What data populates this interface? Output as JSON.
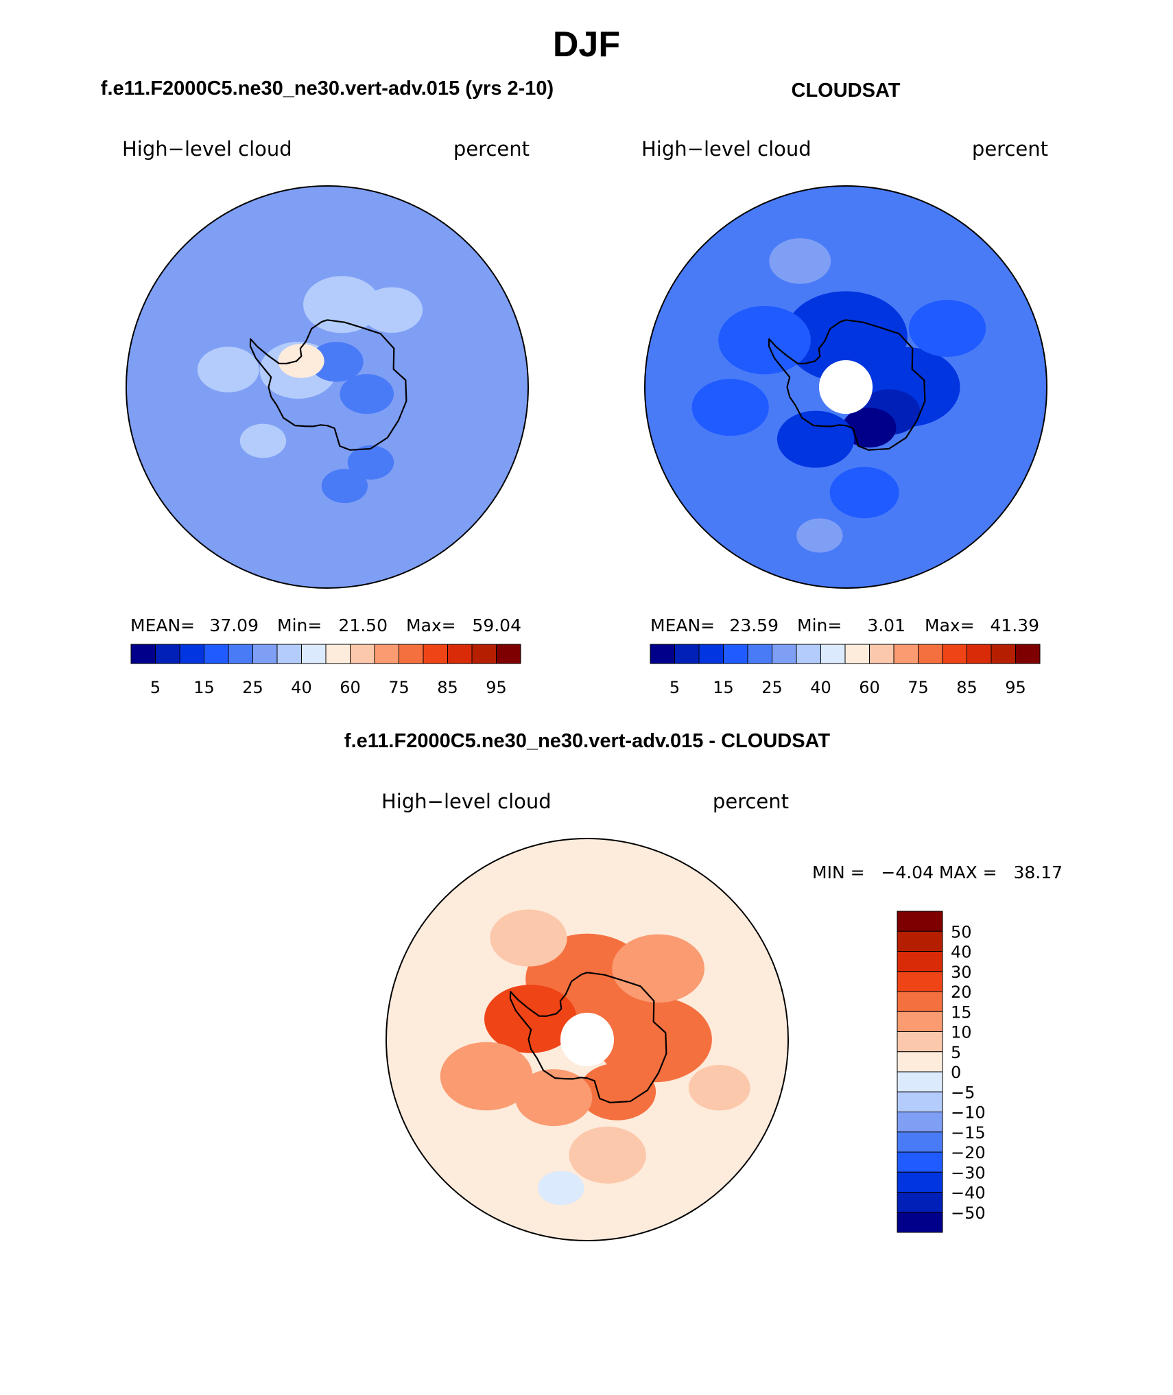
{
  "title": "DJF",
  "panels": [
    {
      "id": "model",
      "header": "f.e11.F2000C5.ne30_ne30.vert-adv.015 (yrs 2-10)",
      "variable": "High−level cloud",
      "units": "percent",
      "stats": {
        "mean_label": "MEAN=",
        "mean": "37.09",
        "min_label": "Min=",
        "min": "21.50",
        "max_label": "Max=",
        "max": "59.04"
      },
      "fields": {
        "background": 5,
        "patches": [
          {
            "lon": -60,
            "lat": -80,
            "r": 10,
            "level": 6
          },
          {
            "lon": 20,
            "lat": -82,
            "r": 7,
            "level": 4
          },
          {
            "lon": 100,
            "lat": -78,
            "r": 7,
            "level": 4
          },
          {
            "lon": -80,
            "lat": -60,
            "r": 8,
            "level": 6
          },
          {
            "lon": 10,
            "lat": -65,
            "r": 10,
            "level": 6
          },
          {
            "lon": 40,
            "lat": -60,
            "r": 8,
            "level": 6
          },
          {
            "lon": -45,
            "lat": -79,
            "r": 6,
            "level": 8
          },
          {
            "lon": 150,
            "lat": -64,
            "r": 6,
            "level": 4
          },
          {
            "lon": 170,
            "lat": -60,
            "r": 6,
            "level": 4
          },
          {
            "lon": -130,
            "lat": -65,
            "r": 6,
            "level": 6
          }
        ]
      }
    },
    {
      "id": "obs",
      "header": "CLOUDSAT",
      "variable": "High−level cloud",
      "units": "percent",
      "stats": {
        "mean_label": "MEAN=",
        "mean": "23.59",
        "min_label": "Min=",
        "min": "3.01",
        "max_label": "Max=",
        "max": "41.39"
      },
      "fields": {
        "background": 4,
        "hole_lat": -82,
        "patches": [
          {
            "lon": 0,
            "lat": -75,
            "r": 16,
            "level": 2
          },
          {
            "lon": 90,
            "lat": -72,
            "r": 14,
            "level": 2
          },
          {
            "lon": 120,
            "lat": -75,
            "r": 8,
            "level": 1
          },
          {
            "lon": 150,
            "lat": -76,
            "r": 7,
            "level": 0
          },
          {
            "lon": -150,
            "lat": -72,
            "r": 10,
            "level": 2
          },
          {
            "lon": -60,
            "lat": -62,
            "r": 12,
            "level": 3
          },
          {
            "lon": 60,
            "lat": -55,
            "r": 10,
            "level": 3
          },
          {
            "lon": -100,
            "lat": -55,
            "r": 10,
            "level": 3
          },
          {
            "lon": 170,
            "lat": -58,
            "r": 9,
            "level": 3
          },
          {
            "lon": -20,
            "lat": -50,
            "r": 8,
            "level": 5
          },
          {
            "lon": -170,
            "lat": -45,
            "r": 6,
            "level": 5
          }
        ]
      },
      "hole": true
    }
  ],
  "difference": {
    "header": "f.e11.F2000C5.ne30_ne30.vert-adv.015 - CLOUDSAT",
    "variable": "High−level cloud",
    "units": "percent",
    "minmax": "MIN =   −4.04 MAX =   38.17",
    "fields": {
      "background": 8,
      "hole_lat": -82,
      "patches": [
        {
          "lon": 0,
          "lat": -72,
          "r": 16,
          "level": 11
        },
        {
          "lon": 90,
          "lat": -70,
          "r": 15,
          "level": 11
        },
        {
          "lon": -70,
          "lat": -72,
          "r": 12,
          "level": 12
        },
        {
          "lon": 150,
          "lat": -72,
          "r": 10,
          "level": 11
        },
        {
          "lon": -150,
          "lat": -70,
          "r": 10,
          "level": 10
        },
        {
          "lon": 45,
          "lat": -60,
          "r": 12,
          "level": 10
        },
        {
          "lon": -110,
          "lat": -58,
          "r": 12,
          "level": 10
        },
        {
          "lon": 170,
          "lat": -55,
          "r": 10,
          "level": 9
        },
        {
          "lon": -30,
          "lat": -55,
          "r": 10,
          "level": 9
        },
        {
          "lon": 110,
          "lat": -48,
          "r": 8,
          "level": 9
        },
        {
          "lon": -170,
          "lat": -45,
          "r": 6,
          "level": 7
        }
      ]
    },
    "hole": true
  },
  "abs_colorbar": {
    "labels": [
      "5",
      "15",
      "25",
      "40",
      "60",
      "75",
      "85",
      "95"
    ],
    "colors": [
      "#00008b",
      "#0020b8",
      "#0035e0",
      "#1f5bff",
      "#4a7bf7",
      "#7f9ff5",
      "#b3ccfb",
      "#dbeafc",
      "#fdebdc",
      "#fcc8ab",
      "#fa9b71",
      "#f5703f",
      "#ef4416",
      "#d92b08",
      "#b51f00",
      "#7f0000"
    ]
  },
  "diff_colorbar": {
    "labels": [
      "50",
      "40",
      "30",
      "20",
      "15",
      "10",
      "5",
      "0",
      "−5",
      "−10",
      "−15",
      "−20",
      "−30",
      "−40",
      "−50"
    ],
    "colors": [
      "#7f0000",
      "#b51f00",
      "#d92b08",
      "#ef4416",
      "#f5703f",
      "#fa9b71",
      "#fcc8ab",
      "#fdebdc",
      "#dbeafc",
      "#b3ccfb",
      "#7f9ff5",
      "#4a7bf7",
      "#1f5bff",
      "#0035e0",
      "#0020b8",
      "#00008b"
    ]
  }
}
